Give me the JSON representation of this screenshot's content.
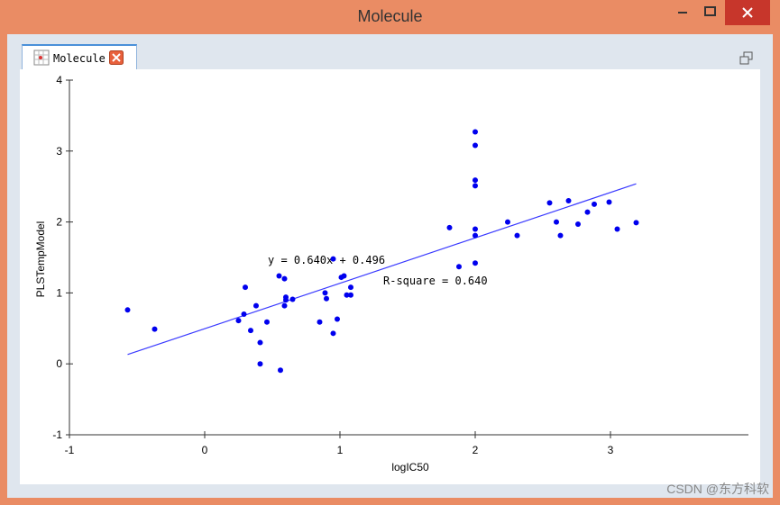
{
  "window": {
    "title": "Molecule",
    "tab": "Molecule",
    "watermark": "CSDN @东方科软"
  },
  "chart_data": {
    "type": "scatter",
    "xlabel": "logIC50",
    "ylabel": "PLSTempModel",
    "annotations": [
      "y = 0.640x + 0.496",
      "R-square = 0.640"
    ],
    "x": [
      -0.57,
      -0.37,
      0.25,
      0.29,
      0.3,
      0.34,
      0.38,
      0.41,
      0.41,
      0.46,
      0.55,
      0.56,
      0.59,
      0.59,
      0.6,
      0.6,
      0.65,
      0.85,
      0.89,
      0.9,
      0.95,
      0.95,
      0.98,
      1.01,
      1.03,
      1.05,
      1.08,
      1.08,
      1.81,
      1.88,
      2.0,
      2.0,
      2.0,
      2.0,
      2.0,
      2.0,
      2.0,
      2.24,
      2.31,
      2.55,
      2.6,
      2.63,
      2.69,
      2.76,
      2.83,
      2.88,
      2.99,
      3.05,
      3.19
    ],
    "values": [
      0.76,
      0.49,
      0.61,
      0.7,
      1.08,
      0.47,
      0.82,
      0.3,
      0.0,
      0.59,
      1.24,
      -0.09,
      1.2,
      0.82,
      0.94,
      0.9,
      0.91,
      0.59,
      1.0,
      0.92,
      1.48,
      0.43,
      0.63,
      1.22,
      1.24,
      0.97,
      1.08,
      0.97,
      1.92,
      1.37,
      3.27,
      3.08,
      2.59,
      2.51,
      1.9,
      1.81,
      1.42,
      2.0,
      1.81,
      2.27,
      2.0,
      1.81,
      2.3,
      1.97,
      2.14,
      2.25,
      2.28,
      1.9,
      1.99
    ],
    "color": "#0000ee",
    "trendline": {
      "slope": 0.64,
      "intercept": 0.496,
      "color": "#3a3aff"
    },
    "xlim": [
      -1,
      4
    ],
    "ylim": [
      -1,
      4
    ],
    "xticks": [
      -1,
      0,
      1,
      2,
      3
    ],
    "yticks": [
      -1,
      0,
      1,
      2,
      3,
      4
    ]
  }
}
